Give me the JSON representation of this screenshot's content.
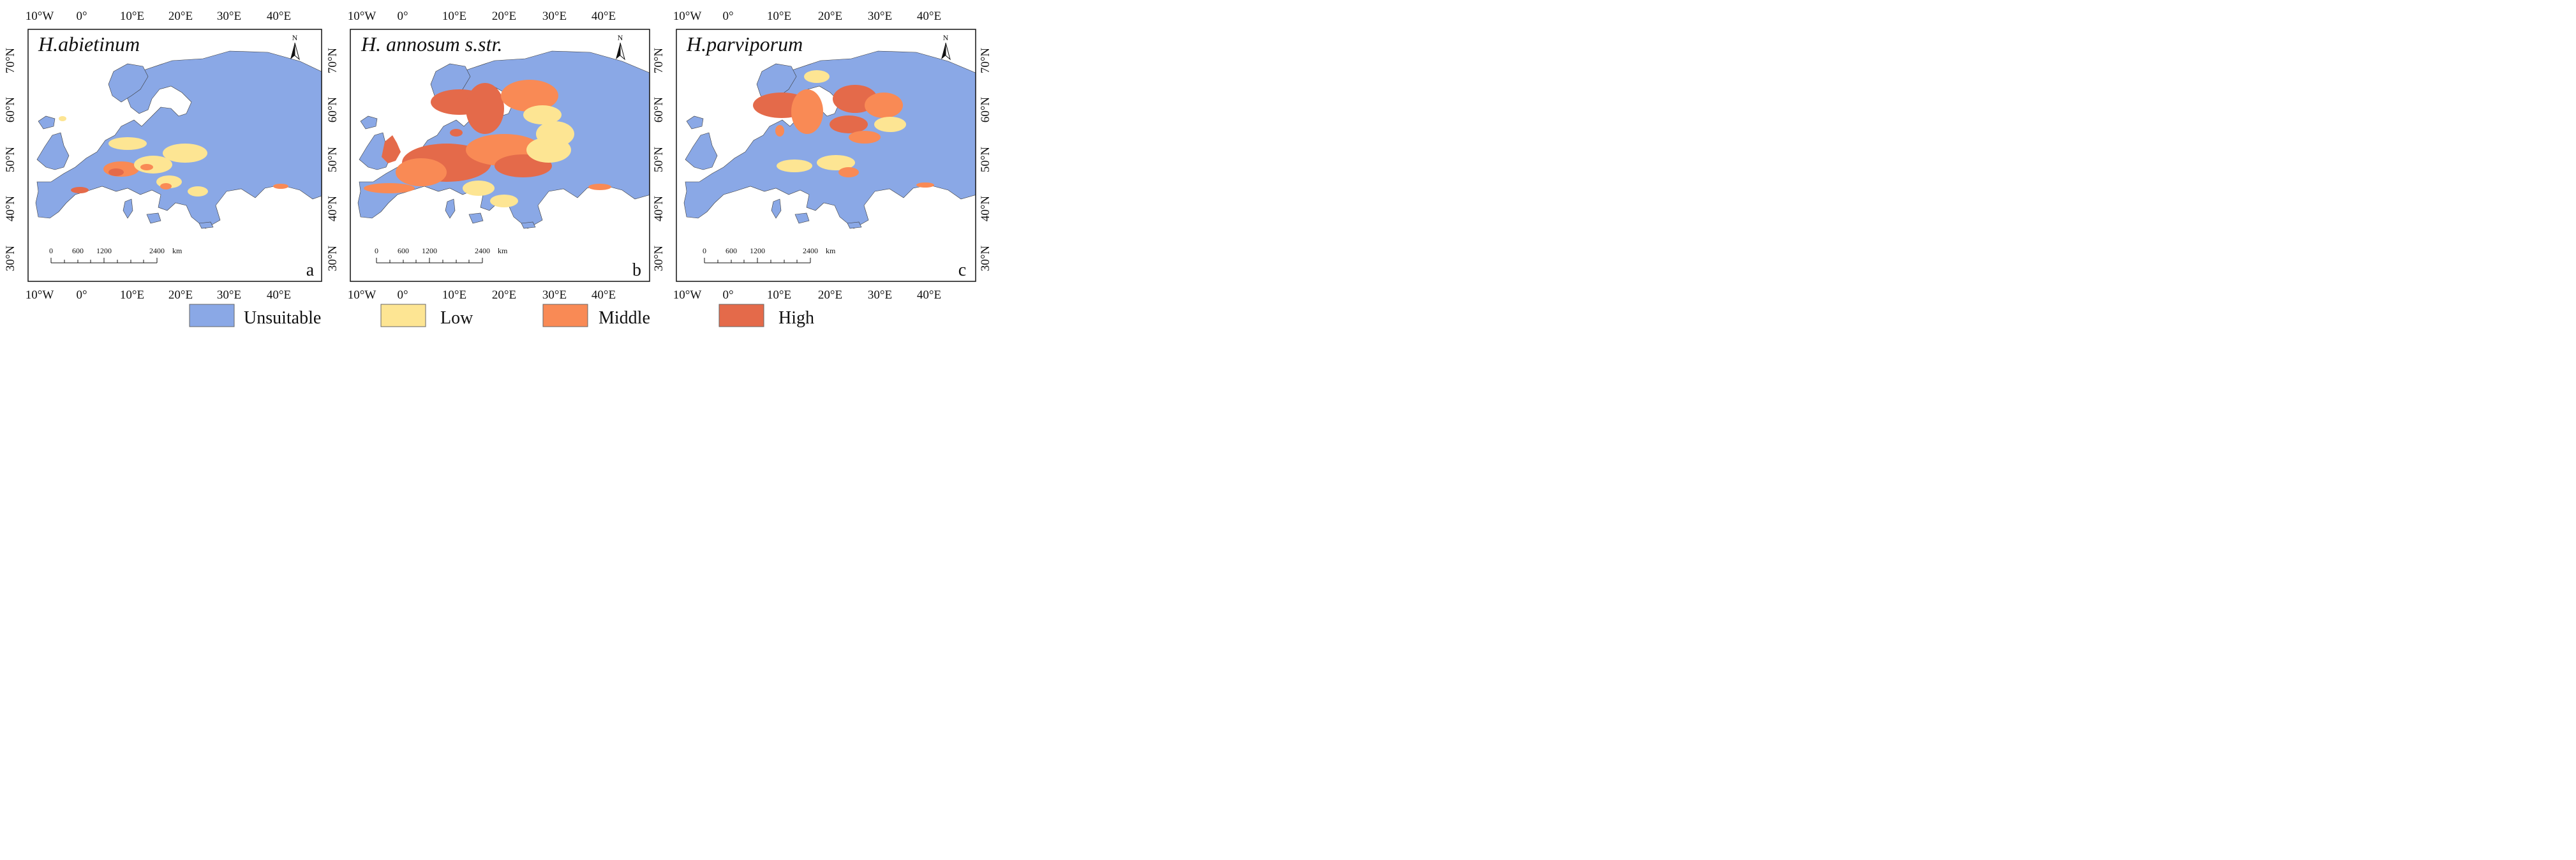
{
  "panels": [
    {
      "id": "a",
      "title": "H.abietinum",
      "letter": "a"
    },
    {
      "id": "b",
      "title": "H. annosum s.str.",
      "letter": "b"
    },
    {
      "id": "c",
      "title": "H.parviporum",
      "letter": "c"
    }
  ],
  "axes": {
    "lon_labels": [
      "10°W",
      "0°",
      "10°E",
      "20°E",
      "30°E",
      "40°E"
    ],
    "lat_labels": [
      "70°N",
      "60°N",
      "50°N",
      "40°N",
      "30°N"
    ]
  },
  "north_arrow": {
    "label": "N"
  },
  "scale_bar": {
    "labels": [
      "0",
      "600",
      "1200",
      "2400"
    ],
    "unit": "km"
  },
  "legend": [
    {
      "label": "Unsuitable",
      "color": "#8aa8e6"
    },
    {
      "label": "Low",
      "color": "#fde593"
    },
    {
      "label": "Middle",
      "color": "#f98a55"
    },
    {
      "label": "High",
      "color": "#e46a4a"
    }
  ]
}
